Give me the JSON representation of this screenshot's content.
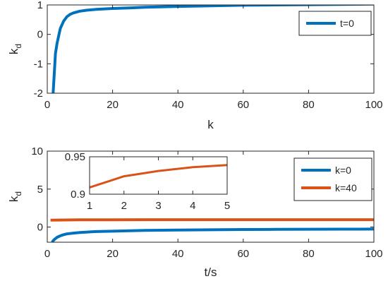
{
  "chart_data": [
    {
      "type": "line",
      "xlabel": "k",
      "ylabel_main": "k",
      "ylabel_sub": "d",
      "xlim": [
        0,
        100
      ],
      "ylim": [
        -2,
        1
      ],
      "xticks": [
        0,
        20,
        40,
        60,
        80,
        100
      ],
      "yticks": [
        -2,
        -1,
        0,
        1
      ],
      "grid": false,
      "legend": "top-right",
      "series": [
        {
          "name": "t=0",
          "color": "#0072BD",
          "x": [
            1.8,
            2.5,
            3,
            4,
            5,
            6,
            7,
            8,
            10,
            12,
            15,
            20,
            25,
            30,
            40,
            50,
            60,
            70,
            80,
            90,
            100
          ],
          "y": [
            -2.0,
            -0.65,
            -0.3,
            0.2,
            0.45,
            0.6,
            0.68,
            0.73,
            0.79,
            0.82,
            0.85,
            0.88,
            0.9,
            0.92,
            0.95,
            0.97,
            0.99,
            1.0,
            1.01,
            1.02,
            1.03
          ]
        }
      ]
    },
    {
      "type": "line",
      "xlabel": "t/s",
      "ylabel_main": "k",
      "ylabel_sub": "d",
      "xlim": [
        0,
        100
      ],
      "ylim": [
        -2,
        10
      ],
      "xticks": [
        0,
        20,
        40,
        60,
        80,
        100
      ],
      "yticks": [
        0,
        5,
        10
      ],
      "grid": false,
      "legend": "top-right",
      "series": [
        {
          "name": "k=0",
          "color": "#0072BD",
          "x": [
            1.5,
            2,
            3,
            4,
            5,
            6,
            8,
            10,
            15,
            20,
            30,
            40,
            50,
            60,
            70,
            80,
            90,
            100
          ],
          "y": [
            -2.0,
            -1.7,
            -1.35,
            -1.15,
            -1.0,
            -0.9,
            -0.8,
            -0.72,
            -0.6,
            -0.55,
            -0.45,
            -0.4,
            -0.36,
            -0.33,
            -0.31,
            -0.29,
            -0.28,
            -0.27
          ]
        },
        {
          "name": "k=40",
          "color": "#D95319",
          "x": [
            1,
            10,
            20,
            30,
            40,
            50,
            60,
            70,
            80,
            90,
            100
          ],
          "y": [
            0.91,
            0.95,
            0.96,
            0.965,
            0.97,
            0.97,
            0.97,
            0.97,
            0.97,
            0.97,
            0.97
          ]
        }
      ]
    },
    {
      "type": "line",
      "role": "inset",
      "xlim": [
        1,
        5
      ],
      "ylim": [
        0.9,
        0.95
      ],
      "xticks": [
        1,
        2,
        3,
        4,
        5
      ],
      "yticks": [
        0.9,
        0.95
      ],
      "grid": false,
      "series": [
        {
          "color": "#D95319",
          "x": [
            1,
            2,
            3,
            4,
            5
          ],
          "y": [
            0.909,
            0.924,
            0.931,
            0.936,
            0.939
          ]
        }
      ]
    }
  ]
}
